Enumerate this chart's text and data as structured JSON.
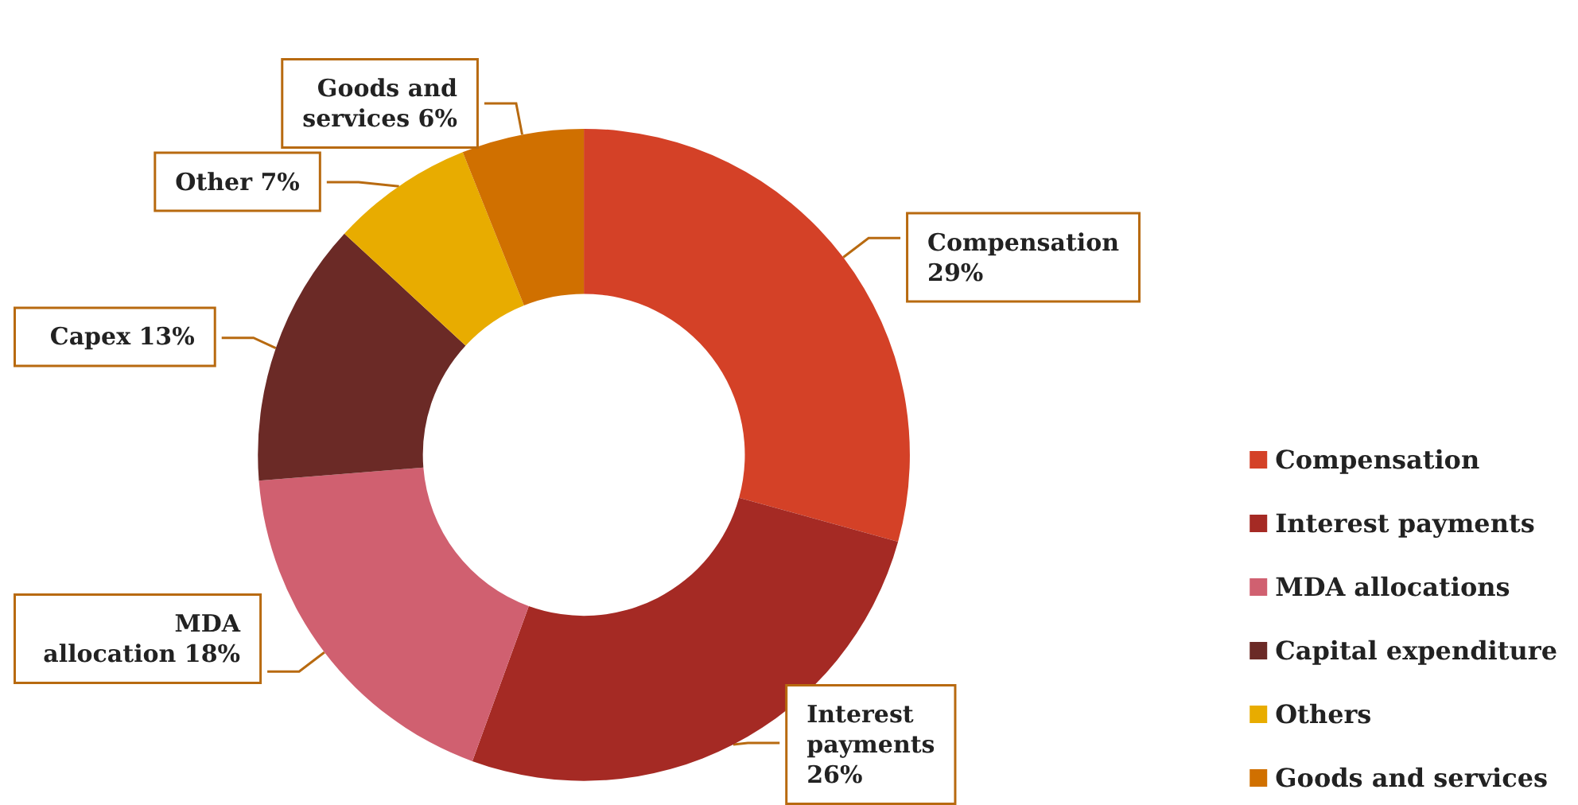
{
  "chart_data": {
    "type": "donut",
    "categories": [
      "Compensation",
      "Interest payments",
      "MDA allocations",
      "Capital expenditure",
      "Others",
      "Goods and services"
    ],
    "values": [
      29,
      26,
      18,
      13,
      7,
      6
    ],
    "colors": [
      "#d44127",
      "#a52a24",
      "#d06070",
      "#6b2a26",
      "#e8ac00",
      "#d07000"
    ],
    "value_labels": [
      "Compensation\n29%",
      "Interest\npayments\n26%",
      "MDA\nallocation 18%",
      "Capex 13%",
      "Other 7%",
      "Goods and\nservices 6%"
    ],
    "legend": "bottom right"
  }
}
